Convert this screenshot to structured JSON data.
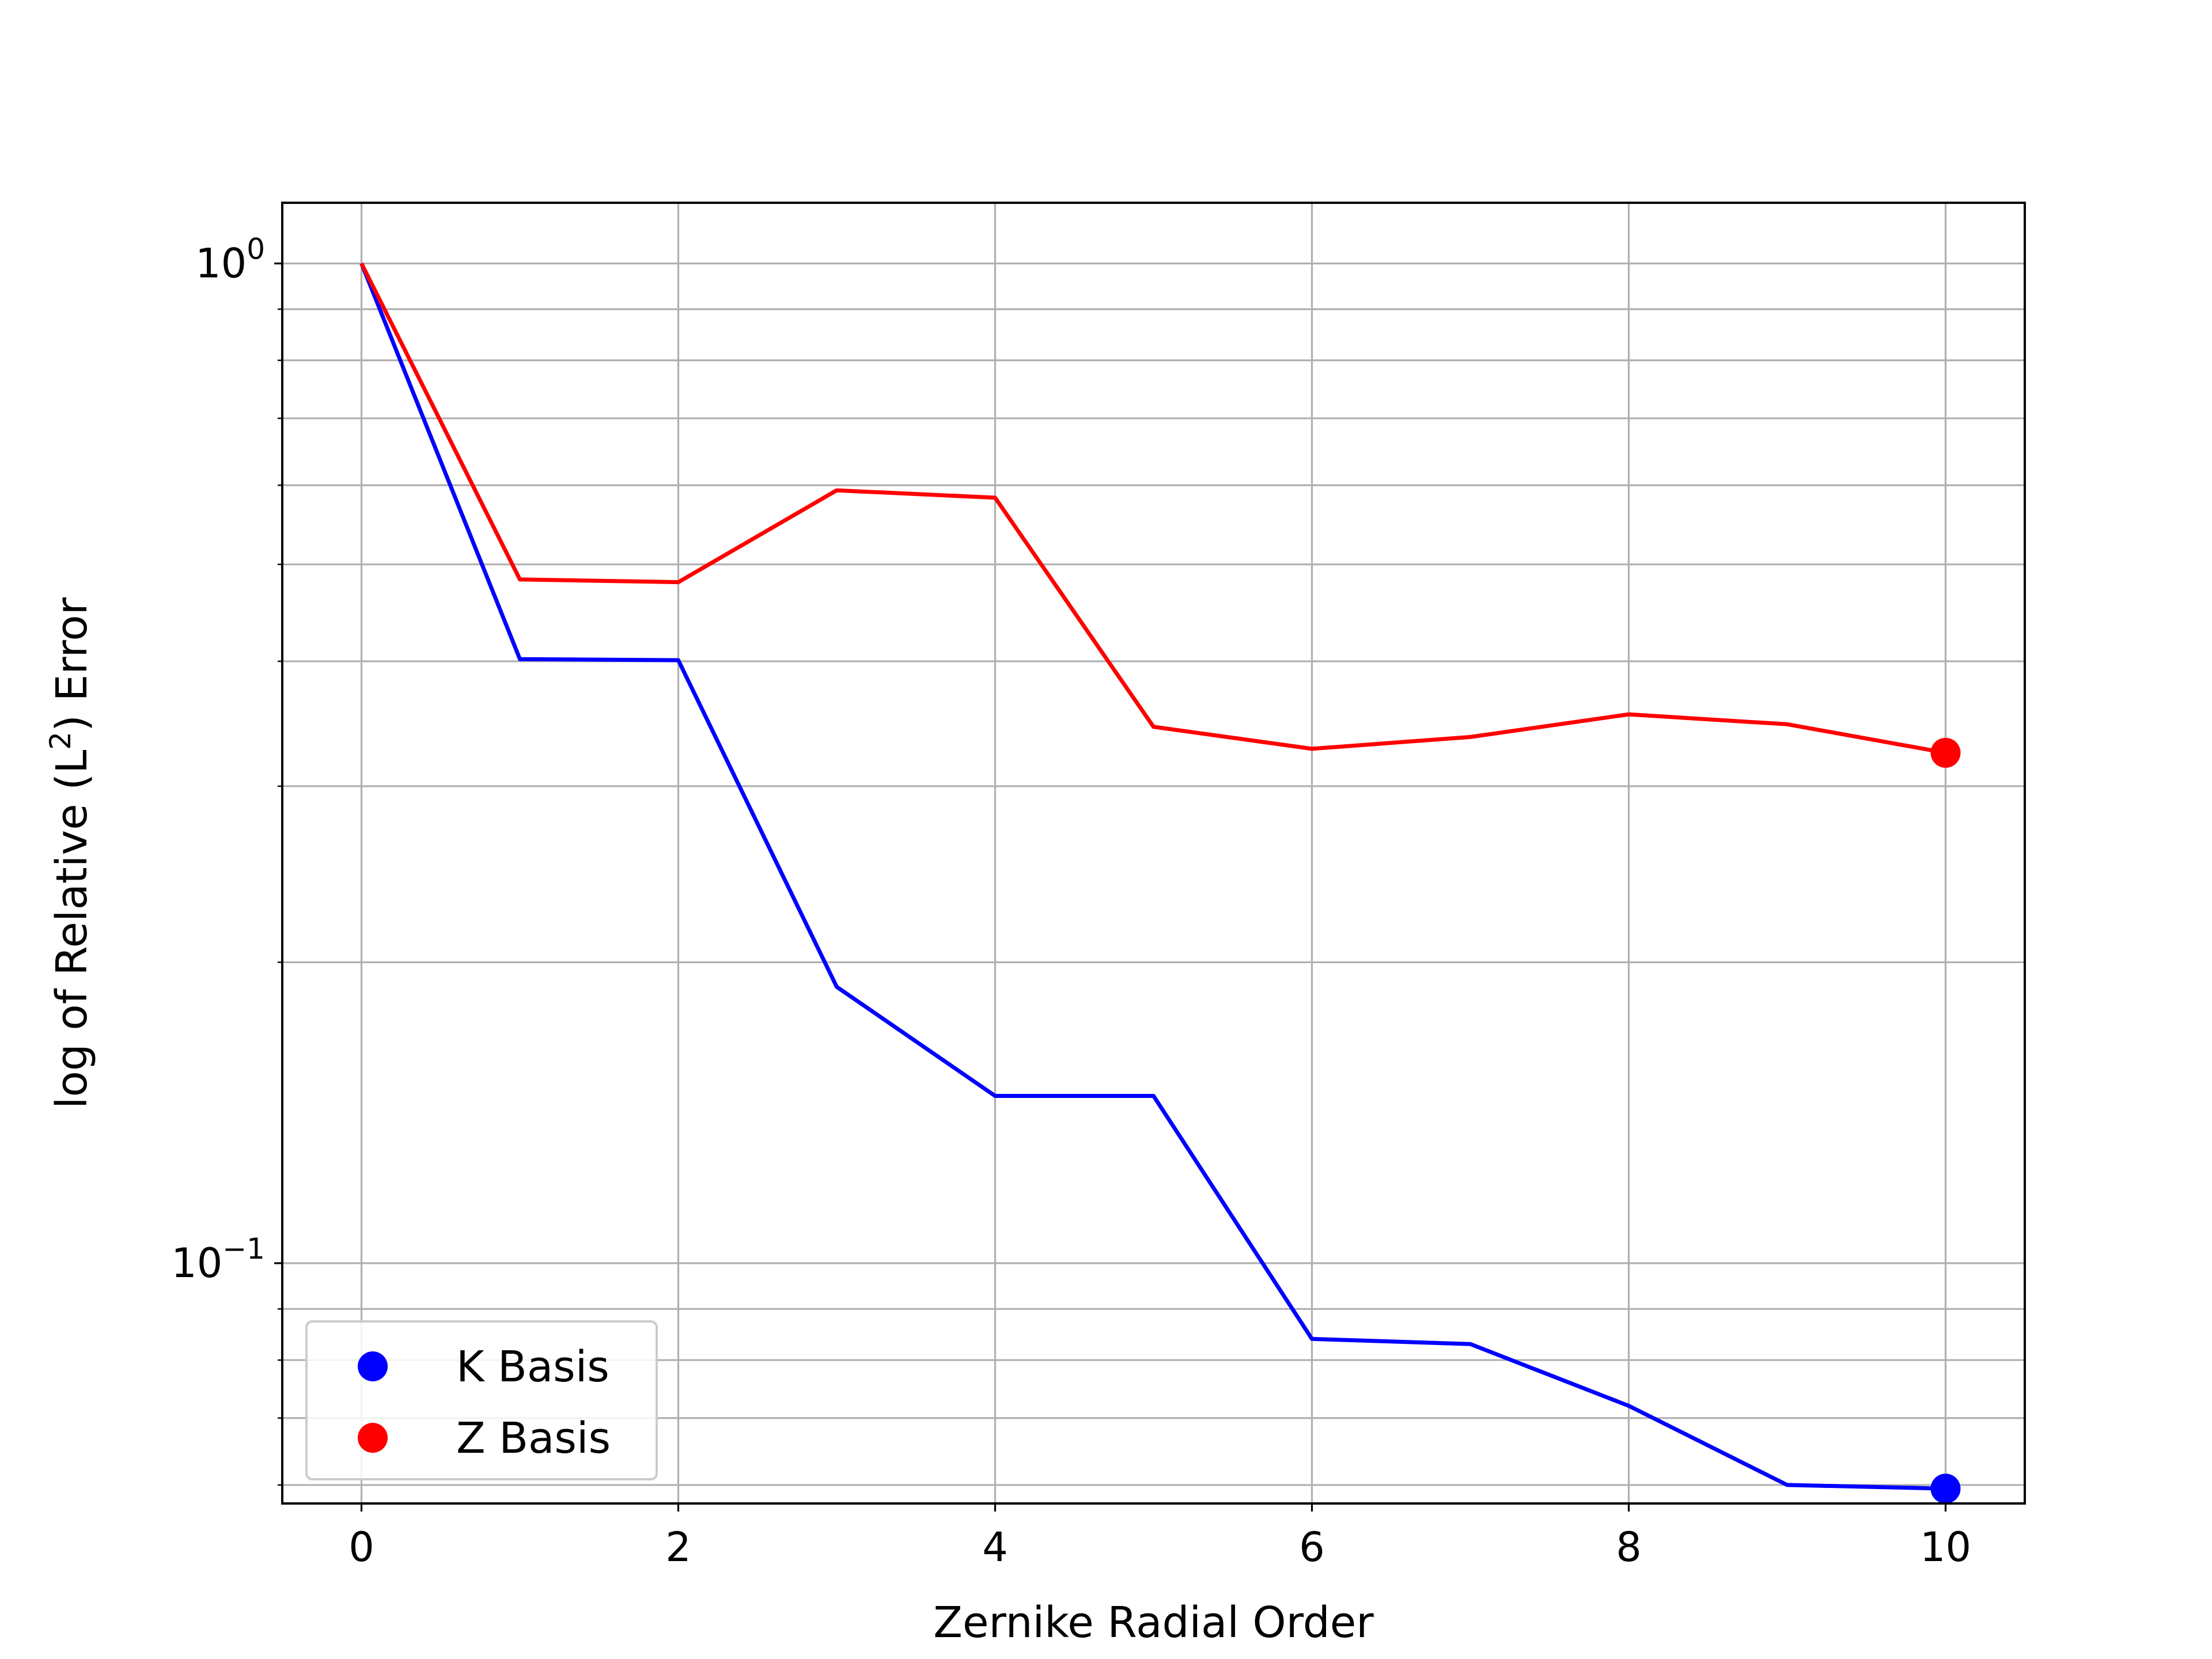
{
  "chart_data": {
    "type": "line",
    "title": "",
    "xlabel": "Zernike Radial Order",
    "ylabel_main": "log of Relative (L",
    "ylabel_sup": "2",
    "ylabel_end": ") Error",
    "xscale": "linear",
    "yscale": "log",
    "xlim": [
      -0.5,
      10.5
    ],
    "ylim": [
      0.0575,
      1.15
    ],
    "xticks": [
      0,
      2,
      4,
      6,
      8,
      10
    ],
    "xtick_labels": [
      "0",
      "2",
      "4",
      "6",
      "8",
      "10"
    ],
    "yticks": [
      {
        "base": "10",
        "exp": "0",
        "value": 1
      },
      {
        "base": "10",
        "exp": "−1",
        "value": 0.1
      }
    ],
    "grid": true,
    "legend_position": "lower-left",
    "series": [
      {
        "name": "K Basis",
        "color": "#0000ff",
        "x": [
          0,
          1,
          2,
          3,
          4,
          5,
          6,
          7,
          8,
          9,
          10
        ],
        "y": [
          1.0,
          0.402,
          0.401,
          0.189,
          0.147,
          0.147,
          0.084,
          0.083,
          0.072,
          0.06,
          0.0595
        ],
        "marker_at_last": true
      },
      {
        "name": "Z Basis",
        "color": "#ff0000",
        "x": [
          0,
          1,
          2,
          3,
          4,
          5,
          6,
          7,
          8,
          9,
          10
        ],
        "y": [
          1.0,
          0.483,
          0.48,
          0.593,
          0.583,
          0.344,
          0.327,
          0.336,
          0.354,
          0.346,
          0.324
        ],
        "marker_at_last": true
      }
    ]
  }
}
